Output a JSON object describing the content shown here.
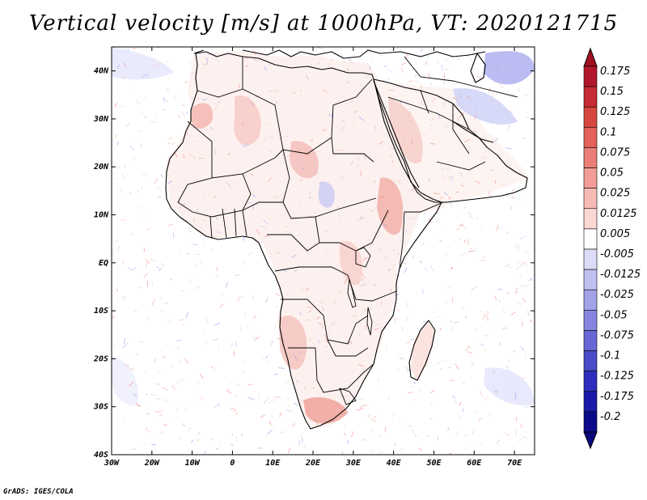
{
  "title": "Vertical velocity [m/s] at 1000hPa, VT: 2020121715",
  "footer": "GrADS: IGES/COLA",
  "map": {
    "region": "Africa",
    "lon_range": [
      -30,
      75
    ],
    "lat_range": [
      -40,
      45
    ],
    "lon_labels": [
      "30W",
      "20W",
      "10W",
      "0",
      "10E",
      "20E",
      "30E",
      "40E",
      "50E",
      "60E",
      "70E"
    ],
    "lat_labels": [
      "40N",
      "30N",
      "20N",
      "10N",
      "EQ",
      "10S",
      "20S",
      "30S",
      "40S"
    ]
  },
  "colorbar": {
    "labels": [
      "0.175",
      "0.15",
      "0.125",
      "0.1",
      "0.075",
      "0.05",
      "0.025",
      "0.0125",
      "0.005",
      "-0.005",
      "-0.0125",
      "-0.025",
      "-0.05",
      "-0.075",
      "-0.1",
      "-0.125",
      "-0.175",
      "-0.2"
    ],
    "colors": [
      "#b2182b",
      "#c62a33",
      "#d6473f",
      "#e2625a",
      "#ec7e78",
      "#f29d98",
      "#f7bbb6",
      "#fbd8d4",
      "#ffffff",
      "#dcdcf8",
      "#c0c0f2",
      "#a3a3ea",
      "#8585e0",
      "#6767d6",
      "#4a4acb",
      "#2e2ebe",
      "#1a1aa8",
      "#0b0b8a"
    ],
    "top_color": "#a01020",
    "bottom_color": "#08087a"
  }
}
